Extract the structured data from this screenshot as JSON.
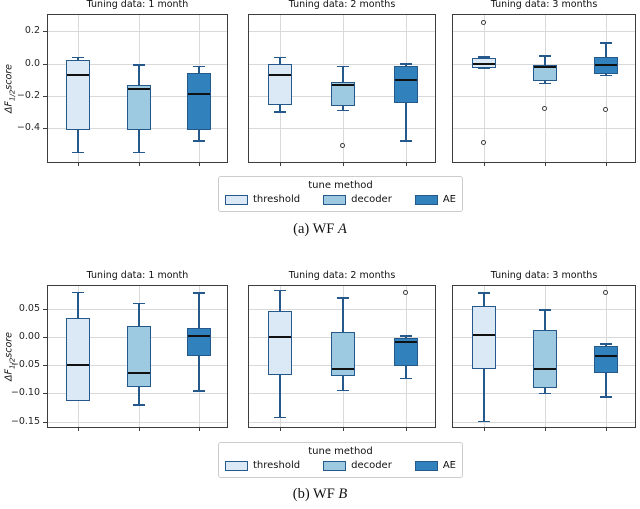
{
  "colors": {
    "threshold": "#dbe9f6",
    "decoder": "#9ecae1",
    "AE": "#3182bc",
    "box_edge": "#26598b",
    "median": "#111111",
    "grid": "#d9d9d9",
    "frame": "#3d3d3d",
    "outlier": "#3b3b3b"
  },
  "chart_data": [
    {
      "type": "box",
      "caption_prefix": "(a) WF ",
      "caption_var": "A",
      "ylabel_parts": {
        "main": "ΔF",
        "sub": "1/2",
        "rest": "score"
      },
      "legend": {
        "title": "tune method",
        "entries": [
          "threshold",
          "decoder",
          "AE"
        ]
      },
      "ylim": [
        -0.62,
        0.3
      ],
      "yticks": [
        {
          "label": "0.2",
          "v": 0.2
        },
        {
          "label": "0.0",
          "v": 0.0
        },
        {
          "label": "−0.2",
          "v": -0.2
        },
        {
          "label": "−0.4",
          "v": -0.4
        }
      ],
      "subplots": [
        {
          "title": "Tuning data: 1 month",
          "boxes": [
            {
              "method": "threshold",
              "whislo": -0.55,
              "q1": -0.41,
              "med": -0.07,
              "q3": 0.02,
              "whishi": 0.035,
              "outliers": []
            },
            {
              "method": "decoder",
              "whislo": -0.55,
              "q1": -0.41,
              "med": -0.155,
              "q3": -0.13,
              "whishi": -0.01,
              "outliers": []
            },
            {
              "method": "AE",
              "whislo": -0.48,
              "q1": -0.41,
              "med": -0.19,
              "q3": -0.06,
              "whishi": -0.02,
              "outliers": []
            }
          ]
        },
        {
          "title": "Tuning data: 2 months",
          "boxes": [
            {
              "method": "threshold",
              "whislo": -0.3,
              "q1": -0.255,
              "med": -0.07,
              "q3": -0.005,
              "whishi": 0.037,
              "outliers": []
            },
            {
              "method": "decoder",
              "whislo": -0.29,
              "q1": -0.26,
              "med": -0.135,
              "q3": -0.115,
              "whishi": -0.02,
              "outliers": [
                -0.51
              ]
            },
            {
              "method": "AE",
              "whislo": -0.48,
              "q1": -0.245,
              "med": -0.1,
              "q3": -0.015,
              "whishi": -0.005,
              "outliers": []
            }
          ]
        },
        {
          "title": "Tuning data: 3 months",
          "boxes": [
            {
              "method": "threshold",
              "whislo": -0.033,
              "q1": -0.025,
              "med": -0.005,
              "q3": 0.033,
              "whishi": 0.04,
              "outliers": [
                0.25,
                -0.49
              ]
            },
            {
              "method": "decoder",
              "whislo": -0.125,
              "q1": -0.107,
              "med": -0.019,
              "q3": -0.009,
              "whishi": 0.045,
              "outliers": [
                -0.283
              ]
            },
            {
              "method": "AE",
              "whislo": -0.074,
              "q1": -0.064,
              "med": -0.006,
              "q3": 0.04,
              "whishi": 0.125,
              "outliers": [
                -0.289
              ]
            }
          ]
        }
      ]
    },
    {
      "type": "box",
      "caption_prefix": "(b) WF ",
      "caption_var": "B",
      "ylabel_parts": {
        "main": "ΔF",
        "sub": "1/2",
        "rest": "score"
      },
      "legend": {
        "title": "tune method",
        "entries": [
          "threshold",
          "decoder",
          "AE"
        ]
      },
      "ylim": [
        -0.163,
        0.09
      ],
      "yticks": [
        {
          "label": "0.05",
          "v": 0.05
        },
        {
          "label": "0.00",
          "v": 0.0
        },
        {
          "label": "−0.05",
          "v": -0.05
        },
        {
          "label": "−0.10",
          "v": -0.1
        },
        {
          "label": "−0.15",
          "v": -0.15
        }
      ],
      "subplots": [
        {
          "title": "Tuning data: 1 month",
          "boxes": [
            {
              "method": "threshold",
              "whislo": -0.113,
              "q1": -0.113,
              "med": -0.049,
              "q3": 0.033,
              "whishi": 0.078,
              "outliers": []
            },
            {
              "method": "decoder",
              "whislo": -0.121,
              "q1": -0.088,
              "med": -0.064,
              "q3": 0.019,
              "whishi": 0.059,
              "outliers": []
            },
            {
              "method": "AE",
              "whislo": -0.096,
              "q1": -0.033,
              "med": 0.002,
              "q3": 0.015,
              "whishi": 0.077,
              "outliers": []
            }
          ]
        },
        {
          "title": "Tuning data: 2 months",
          "boxes": [
            {
              "method": "threshold",
              "whislo": -0.143,
              "q1": -0.068,
              "med": 0.0,
              "q3": 0.046,
              "whishi": 0.082,
              "outliers": []
            },
            {
              "method": "decoder",
              "whislo": -0.095,
              "q1": -0.07,
              "med": -0.057,
              "q3": 0.008,
              "whishi": 0.068,
              "outliers": []
            },
            {
              "method": "AE",
              "whislo": -0.074,
              "q1": -0.051,
              "med": -0.009,
              "q3": -0.002,
              "whishi": 0.001,
              "outliers": [
                0.078
              ]
            }
          ]
        },
        {
          "title": "Tuning data: 3 months",
          "boxes": [
            {
              "method": "threshold",
              "whislo": -0.15,
              "q1": -0.057,
              "med": 0.003,
              "q3": 0.055,
              "whishi": 0.077,
              "outliers": []
            },
            {
              "method": "decoder",
              "whislo": -0.101,
              "q1": -0.091,
              "med": -0.057,
              "q3": 0.013,
              "whishi": 0.047,
              "outliers": []
            },
            {
              "method": "AE",
              "whislo": -0.107,
              "q1": -0.064,
              "med": -0.033,
              "q3": -0.016,
              "whishi": -0.013,
              "outliers": [
                0.078
              ]
            }
          ]
        }
      ]
    }
  ]
}
